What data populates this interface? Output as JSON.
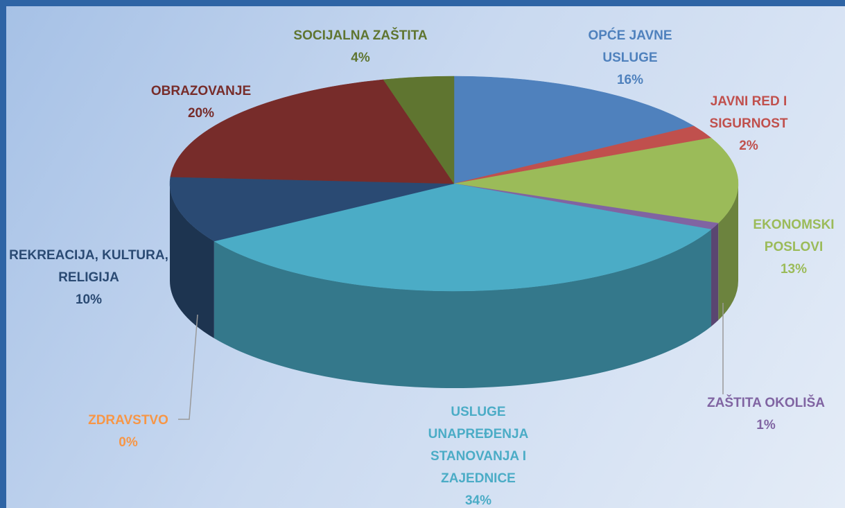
{
  "chart_data": {
    "type": "pie",
    "categories": [
      "OPĆE JAVNE USLUGE",
      "JAVNI RED I SIGURNOST",
      "EKONOMSKI POSLOVI",
      "ZAŠTITA OKOLIŠA",
      "USLUGE UNAPREĐENJA STANOVANJA I ZAJEDNICE",
      "ZDRAVSTVO",
      "REKREACIJA, KULTURA, RELIGIJA",
      "OBRAZOVANJE",
      "SOCIJALNA ZAŠTITA"
    ],
    "values": [
      16,
      2,
      13,
      1,
      34,
      0,
      10,
      20,
      4
    ],
    "value_labels": [
      "16%",
      "2%",
      "13%",
      "1%",
      "34%",
      "0%",
      "10%",
      "20%",
      "4%"
    ],
    "colors": [
      "#4f81bd",
      "#c0504d",
      "#9bbb59",
      "#8064a2",
      "#4bacc6",
      "#f79646",
      "#2a4a73",
      "#772c2a",
      "#5f7530"
    ]
  }
}
